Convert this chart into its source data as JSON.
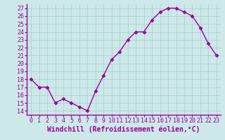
{
  "x": [
    0,
    1,
    2,
    3,
    4,
    5,
    6,
    7,
    8,
    9,
    10,
    11,
    12,
    13,
    14,
    15,
    16,
    17,
    18,
    19,
    20,
    21,
    22,
    23
  ],
  "y": [
    18,
    17,
    17,
    15,
    15.5,
    15,
    14.5,
    14,
    16.5,
    18.5,
    20.5,
    21.5,
    23,
    24,
    24,
    25.5,
    26.5,
    27,
    27,
    26.5,
    26,
    24.5,
    22.5,
    21
  ],
  "line_color": "#990099",
  "marker": "D",
  "marker_size": 2.5,
  "bg_color": "#cce8e8",
  "grid_color": "#aacccc",
  "xlabel": "Windchill (Refroidissement éolien,°C)",
  "xlabel_color": "#990099",
  "ylabel_ticks": [
    14,
    15,
    16,
    17,
    18,
    19,
    20,
    21,
    22,
    23,
    24,
    25,
    26,
    27
  ],
  "xlim": [
    -0.5,
    23.5
  ],
  "ylim": [
    13.5,
    27.5
  ],
  "xtick_labels": [
    "0",
    "1",
    "2",
    "3",
    "4",
    "5",
    "6",
    "7",
    "8",
    "9",
    "10",
    "11",
    "12",
    "13",
    "14",
    "15",
    "16",
    "17",
    "18",
    "19",
    "20",
    "21",
    "22",
    "23"
  ],
  "tick_fontsize": 6,
  "xlabel_fontsize": 7,
  "line_width": 1.0,
  "spine_color": "#990099",
  "tick_color": "#990099"
}
